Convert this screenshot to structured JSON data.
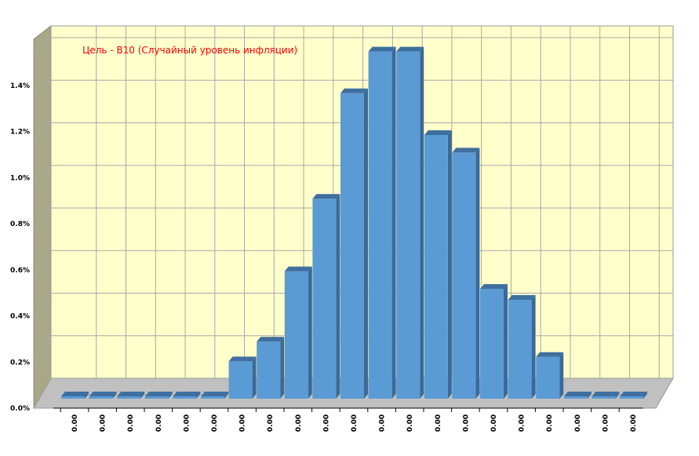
{
  "chart_data": {
    "type": "bar",
    "title": "Цель - B10 (Случайный уровень инфляции)",
    "xlabel": "",
    "ylabel": "",
    "ylim": [
      0,
      0.016
    ],
    "y_ticks": [
      "0.0%",
      "0.2%",
      "0.4%",
      "0.6%",
      "0.8%",
      "1.0%",
      "1.2%",
      "1.4%"
    ],
    "y_tick_values": [
      0,
      0.002,
      0.004,
      0.006,
      0.008,
      0.01,
      0.012,
      0.014
    ],
    "categories": [
      "0.00",
      "0.00",
      "0.00",
      "0.00",
      "0.00",
      "0.00",
      "0.00",
      "0.00",
      "0.00",
      "0.00",
      "0.00",
      "0.00",
      "0.00",
      "0.00",
      "0.00",
      "0.00",
      "0.00",
      "0.00",
      "0.00",
      "0.00",
      "0.00"
    ],
    "values": [
      0,
      0,
      0,
      0.0001,
      0.0001,
      0.0001,
      0.0017,
      0.0026,
      0.0058,
      0.0091,
      0.0139,
      0.0158,
      0.0158,
      0.012,
      0.0112,
      0.005,
      0.0045,
      0.0019,
      0.0001,
      0.0001,
      0
    ],
    "grid": true,
    "legend": "none",
    "colors": {
      "bar": "#5b9bd5",
      "bar_top": "#3f6f9f",
      "bar_side": "#3a6a98",
      "wall": "#ffffcc",
      "side_wall": "#a8a888",
      "floor": "#c0c0c0",
      "gridline": "#a8a8a8",
      "title": "#ff0000"
    }
  }
}
